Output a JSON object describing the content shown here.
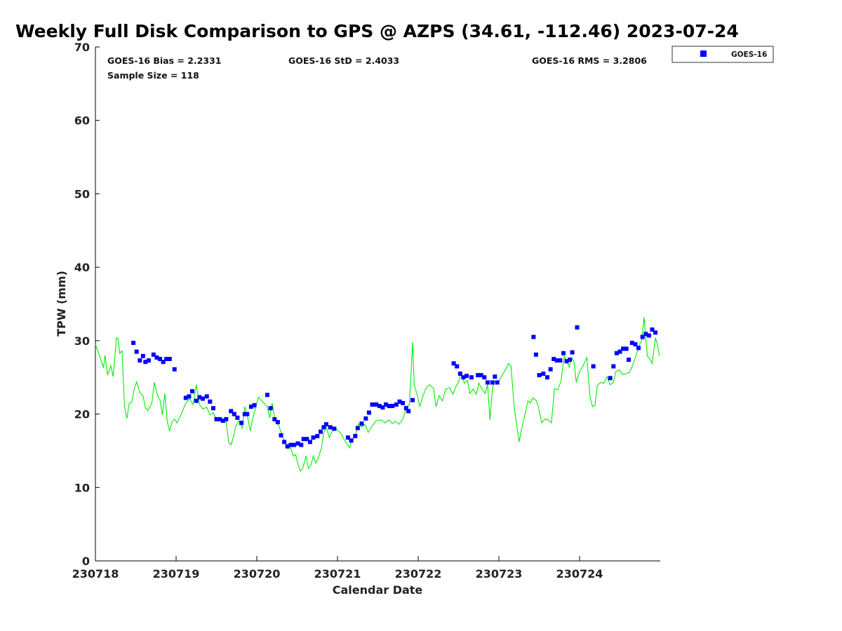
{
  "chart_data": {
    "type": "scatter",
    "title": "Weekly Full Disk Comparison to GPS @ AZPS (34.61, -112.46) 2023-07-24",
    "xlabel": "Calendar Date",
    "ylabel": "TPW (mm)",
    "xlim": [
      0,
      7
    ],
    "ylim": [
      0,
      70
    ],
    "x_ticks": [
      0,
      1,
      2,
      3,
      4,
      5,
      6
    ],
    "x_tick_labels": [
      "230718",
      "230719",
      "230720",
      "230721",
      "230722",
      "230723",
      "230724"
    ],
    "y_ticks": [
      0,
      10,
      20,
      30,
      40,
      50,
      60,
      70
    ],
    "y_tick_labels": [
      "0",
      "10",
      "20",
      "30",
      "40",
      "50",
      "60",
      "70"
    ],
    "grid": false,
    "legend": "top-right outside plot",
    "stats": {
      "bias": "GOES-16 Bias = 2.2331",
      "std": "GOES-16 StD = 2.4033",
      "rms": "GOES-16 RMS = 3.2806",
      "sample": "Sample Size = 118"
    },
    "series": [
      {
        "name": "GOES-16",
        "kind": "scatter",
        "marker": "square",
        "color": "#0000ff",
        "points": [
          [
            0.47,
            29.7
          ],
          [
            0.51,
            28.5
          ],
          [
            0.55,
            27.3
          ],
          [
            0.59,
            27.9
          ],
          [
            0.62,
            27.1
          ],
          [
            0.66,
            27.3
          ],
          [
            0.72,
            28.1
          ],
          [
            0.76,
            27.7
          ],
          [
            0.8,
            27.5
          ],
          [
            0.84,
            27.1
          ],
          [
            0.88,
            27.5
          ],
          [
            0.92,
            27.5
          ],
          [
            0.98,
            26.1
          ],
          [
            1.12,
            22.2
          ],
          [
            1.16,
            22.4
          ],
          [
            1.2,
            23.1
          ],
          [
            1.25,
            21.8
          ],
          [
            1.29,
            22.3
          ],
          [
            1.33,
            22.1
          ],
          [
            1.38,
            22.4
          ],
          [
            1.42,
            21.7
          ],
          [
            1.46,
            20.8
          ],
          [
            1.5,
            19.3
          ],
          [
            1.54,
            19.3
          ],
          [
            1.58,
            19.1
          ],
          [
            1.62,
            19.3
          ],
          [
            1.68,
            20.4
          ],
          [
            1.72,
            20.0
          ],
          [
            1.76,
            19.5
          ],
          [
            1.81,
            18.8
          ],
          [
            1.85,
            20.0
          ],
          [
            1.88,
            20.0
          ],
          [
            1.93,
            21.0
          ],
          [
            1.97,
            21.2
          ],
          [
            2.13,
            22.6
          ],
          [
            2.17,
            20.8
          ],
          [
            2.22,
            19.3
          ],
          [
            2.26,
            18.9
          ],
          [
            2.3,
            17.1
          ],
          [
            2.34,
            16.2
          ],
          [
            2.38,
            15.6
          ],
          [
            2.42,
            15.8
          ],
          [
            2.46,
            15.8
          ],
          [
            2.51,
            16.0
          ],
          [
            2.55,
            15.8
          ],
          [
            2.58,
            16.6
          ],
          [
            2.62,
            16.6
          ],
          [
            2.66,
            16.2
          ],
          [
            2.7,
            16.8
          ],
          [
            2.75,
            17.0
          ],
          [
            2.79,
            17.6
          ],
          [
            2.83,
            18.2
          ],
          [
            2.86,
            18.6
          ],
          [
            2.91,
            18.2
          ],
          [
            2.96,
            18.0
          ],
          [
            3.13,
            16.8
          ],
          [
            3.17,
            16.4
          ],
          [
            3.22,
            17.0
          ],
          [
            3.25,
            18.1
          ],
          [
            3.3,
            18.7
          ],
          [
            3.35,
            19.4
          ],
          [
            3.39,
            20.2
          ],
          [
            3.43,
            21.3
          ],
          [
            3.48,
            21.3
          ],
          [
            3.52,
            21.1
          ],
          [
            3.56,
            20.9
          ],
          [
            3.6,
            21.3
          ],
          [
            3.64,
            21.1
          ],
          [
            3.68,
            21.1
          ],
          [
            3.73,
            21.3
          ],
          [
            3.77,
            21.7
          ],
          [
            3.81,
            21.5
          ],
          [
            3.85,
            20.8
          ],
          [
            3.88,
            20.4
          ],
          [
            3.93,
            21.9
          ],
          [
            4.44,
            26.9
          ],
          [
            4.48,
            26.5
          ],
          [
            4.52,
            25.5
          ],
          [
            4.56,
            25.0
          ],
          [
            4.6,
            25.2
          ],
          [
            4.66,
            25.0
          ],
          [
            4.74,
            25.3
          ],
          [
            4.78,
            25.3
          ],
          [
            4.82,
            25.0
          ],
          [
            4.86,
            24.3
          ],
          [
            4.92,
            24.3
          ],
          [
            4.95,
            25.1
          ],
          [
            4.98,
            24.3
          ],
          [
            5.43,
            30.5
          ],
          [
            5.46,
            28.1
          ],
          [
            5.5,
            25.3
          ],
          [
            5.55,
            25.5
          ],
          [
            5.6,
            25.0
          ],
          [
            5.64,
            26.1
          ],
          [
            5.68,
            27.5
          ],
          [
            5.72,
            27.3
          ],
          [
            5.76,
            27.3
          ],
          [
            5.8,
            28.3
          ],
          [
            5.84,
            27.2
          ],
          [
            5.88,
            27.4
          ],
          [
            5.91,
            28.4
          ],
          [
            5.97,
            31.8
          ],
          [
            6.17,
            26.5
          ],
          [
            6.38,
            24.9
          ],
          [
            6.42,
            26.5
          ],
          [
            6.46,
            28.3
          ],
          [
            6.5,
            28.5
          ],
          [
            6.54,
            28.9
          ],
          [
            6.58,
            28.9
          ],
          [
            6.61,
            27.4
          ],
          [
            6.65,
            29.7
          ],
          [
            6.69,
            29.5
          ],
          [
            6.73,
            29.0
          ],
          [
            6.78,
            30.5
          ],
          [
            6.82,
            30.9
          ],
          [
            6.86,
            30.7
          ],
          [
            6.9,
            31.5
          ],
          [
            6.94,
            31.1
          ]
        ]
      },
      {
        "name": "",
        "kind": "line",
        "color": "#00ee00",
        "points": [
          [
            0.0,
            29.5
          ],
          [
            0.05,
            28.0
          ],
          [
            0.1,
            26.3
          ],
          [
            0.12,
            28.0
          ],
          [
            0.15,
            25.3
          ],
          [
            0.19,
            26.6
          ],
          [
            0.22,
            25.1
          ],
          [
            0.26,
            30.4
          ],
          [
            0.28,
            30.3
          ],
          [
            0.3,
            28.3
          ],
          [
            0.33,
            28.6
          ],
          [
            0.36,
            21.1
          ],
          [
            0.39,
            19.4
          ],
          [
            0.42,
            21.5
          ],
          [
            0.45,
            21.6
          ],
          [
            0.48,
            23.4
          ],
          [
            0.51,
            24.4
          ],
          [
            0.55,
            22.9
          ],
          [
            0.59,
            22.5
          ],
          [
            0.62,
            20.8
          ],
          [
            0.65,
            20.5
          ],
          [
            0.7,
            21.5
          ],
          [
            0.73,
            24.3
          ],
          [
            0.77,
            22.5
          ],
          [
            0.8,
            21.9
          ],
          [
            0.83,
            19.9
          ],
          [
            0.86,
            22.8
          ],
          [
            0.89,
            19.0
          ],
          [
            0.92,
            17.7
          ],
          [
            0.95,
            19.0
          ],
          [
            0.98,
            19.3
          ],
          [
            1.01,
            18.8
          ],
          [
            1.06,
            19.9
          ],
          [
            1.12,
            21.5
          ],
          [
            1.17,
            22.1
          ],
          [
            1.21,
            21.3
          ],
          [
            1.25,
            24.0
          ],
          [
            1.29,
            21.3
          ],
          [
            1.33,
            20.7
          ],
          [
            1.38,
            20.9
          ],
          [
            1.42,
            19.9
          ],
          [
            1.46,
            20.2
          ],
          [
            1.5,
            19.2
          ],
          [
            1.54,
            19.2
          ],
          [
            1.58,
            18.9
          ],
          [
            1.62,
            18.9
          ],
          [
            1.65,
            16.2
          ],
          [
            1.68,
            15.8
          ],
          [
            1.71,
            16.8
          ],
          [
            1.74,
            18.4
          ],
          [
            1.78,
            19.1
          ],
          [
            1.82,
            18.1
          ],
          [
            1.85,
            21.0
          ],
          [
            1.88,
            19.9
          ],
          [
            1.92,
            17.7
          ],
          [
            1.95,
            19.5
          ],
          [
            1.99,
            21.1
          ],
          [
            2.02,
            22.3
          ],
          [
            2.08,
            21.6
          ],
          [
            2.13,
            21.0
          ],
          [
            2.16,
            19.5
          ],
          [
            2.19,
            21.5
          ],
          [
            2.23,
            19.0
          ],
          [
            2.27,
            18.5
          ],
          [
            2.3,
            17.5
          ],
          [
            2.34,
            16.4
          ],
          [
            2.38,
            15.3
          ],
          [
            2.42,
            15.4
          ],
          [
            2.45,
            14.3
          ],
          [
            2.48,
            14.5
          ],
          [
            2.51,
            13.2
          ],
          [
            2.54,
            12.2
          ],
          [
            2.57,
            12.6
          ],
          [
            2.61,
            14.3
          ],
          [
            2.64,
            12.6
          ],
          [
            2.67,
            13.0
          ],
          [
            2.7,
            14.3
          ],
          [
            2.73,
            13.3
          ],
          [
            2.76,
            14.0
          ],
          [
            2.8,
            15.3
          ],
          [
            2.83,
            17.5
          ],
          [
            2.86,
            18.2
          ],
          [
            2.9,
            16.8
          ],
          [
            2.94,
            17.8
          ],
          [
            2.98,
            18.0
          ],
          [
            3.04,
            17.4
          ],
          [
            3.1,
            16.2
          ],
          [
            3.15,
            15.4
          ],
          [
            3.18,
            16.5
          ],
          [
            3.22,
            17.0
          ],
          [
            3.26,
            18.7
          ],
          [
            3.3,
            18.2
          ],
          [
            3.34,
            18.6
          ],
          [
            3.38,
            17.5
          ],
          [
            3.43,
            18.4
          ],
          [
            3.48,
            19.1
          ],
          [
            3.54,
            19.2
          ],
          [
            3.59,
            18.8
          ],
          [
            3.64,
            19.2
          ],
          [
            3.68,
            18.7
          ],
          [
            3.72,
            19.0
          ],
          [
            3.76,
            18.6
          ],
          [
            3.81,
            19.3
          ],
          [
            3.86,
            21.0
          ],
          [
            3.89,
            21.3
          ],
          [
            3.91,
            25.3
          ],
          [
            3.93,
            29.8
          ],
          [
            3.95,
            24.0
          ],
          [
            3.99,
            22.5
          ],
          [
            4.02,
            21.0
          ],
          [
            4.06,
            22.5
          ],
          [
            4.1,
            23.6
          ],
          [
            4.14,
            24.0
          ],
          [
            4.19,
            23.5
          ],
          [
            4.22,
            21.0
          ],
          [
            4.26,
            22.5
          ],
          [
            4.3,
            21.8
          ],
          [
            4.34,
            23.4
          ],
          [
            4.39,
            23.6
          ],
          [
            4.43,
            22.7
          ],
          [
            4.47,
            23.8
          ],
          [
            4.5,
            24.3
          ],
          [
            4.53,
            25.8
          ],
          [
            4.57,
            24.2
          ],
          [
            4.61,
            24.6
          ],
          [
            4.64,
            22.8
          ],
          [
            4.68,
            23.4
          ],
          [
            4.72,
            22.7
          ],
          [
            4.75,
            24.2
          ],
          [
            4.79,
            23.4
          ],
          [
            4.83,
            22.8
          ],
          [
            4.86,
            24.0
          ],
          [
            4.89,
            19.2
          ],
          [
            4.92,
            23.5
          ],
          [
            4.95,
            24.5
          ],
          [
            4.99,
            24.3
          ],
          [
            5.04,
            25.3
          ],
          [
            5.08,
            26.0
          ],
          [
            5.12,
            26.9
          ],
          [
            5.15,
            26.5
          ],
          [
            5.17,
            23.8
          ],
          [
            5.19,
            20.8
          ],
          [
            5.22,
            18.6
          ],
          [
            5.25,
            16.2
          ],
          [
            5.28,
            17.9
          ],
          [
            5.32,
            19.8
          ],
          [
            5.36,
            21.8
          ],
          [
            5.39,
            21.5
          ],
          [
            5.42,
            22.2
          ],
          [
            5.46,
            21.9
          ],
          [
            5.49,
            21.0
          ],
          [
            5.53,
            18.8
          ],
          [
            5.57,
            19.3
          ],
          [
            5.61,
            19.2
          ],
          [
            5.65,
            18.8
          ],
          [
            5.69,
            23.5
          ],
          [
            5.73,
            23.3
          ],
          [
            5.77,
            24.5
          ],
          [
            5.81,
            27.9
          ],
          [
            5.84,
            27.3
          ],
          [
            5.87,
            26.4
          ],
          [
            5.9,
            27.7
          ],
          [
            5.93,
            27.2
          ],
          [
            5.96,
            24.3
          ],
          [
            6.0,
            25.8
          ],
          [
            6.04,
            26.5
          ],
          [
            6.09,
            27.7
          ],
          [
            6.13,
            22.3
          ],
          [
            6.16,
            21.0
          ],
          [
            6.19,
            21.2
          ],
          [
            6.22,
            23.9
          ],
          [
            6.26,
            24.3
          ],
          [
            6.3,
            24.2
          ],
          [
            6.34,
            25.1
          ],
          [
            6.38,
            24.0
          ],
          [
            6.42,
            24.3
          ],
          [
            6.45,
            25.8
          ],
          [
            6.49,
            26.0
          ],
          [
            6.53,
            25.4
          ],
          [
            6.58,
            25.5
          ],
          [
            6.62,
            25.7
          ],
          [
            6.66,
            26.7
          ],
          [
            6.7,
            28.0
          ],
          [
            6.74,
            29.4
          ],
          [
            6.77,
            30.0
          ],
          [
            6.8,
            33.2
          ],
          [
            6.82,
            30.3
          ],
          [
            6.84,
            27.9
          ],
          [
            6.87,
            27.5
          ],
          [
            6.9,
            26.9
          ],
          [
            6.94,
            30.4
          ],
          [
            6.97,
            29.3
          ],
          [
            6.99,
            27.9
          ]
        ]
      }
    ]
  }
}
